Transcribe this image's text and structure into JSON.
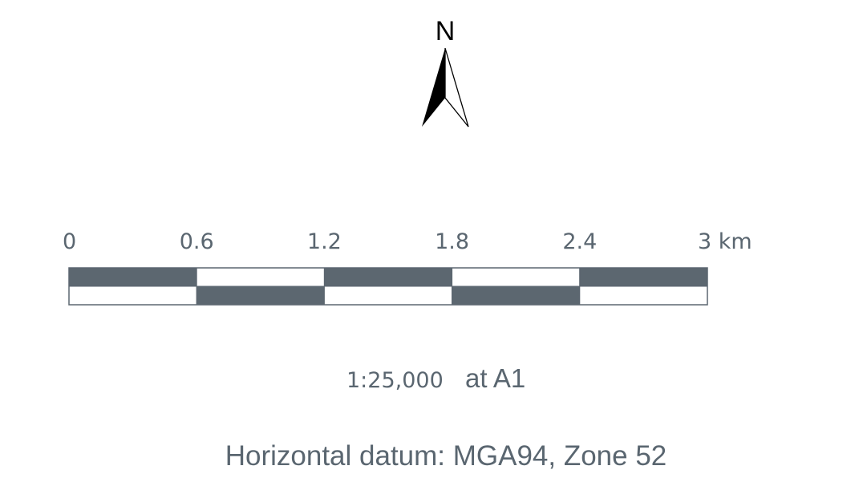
{
  "north_arrow": {
    "label": "N",
    "icon": "north-arrow-icon"
  },
  "scale_bar": {
    "unit": "km",
    "ticks": [
      "0",
      "0.6",
      "1.2",
      "1.8",
      "2.4",
      "3 km"
    ],
    "segment_values_km": [
      0,
      0.6,
      1.2,
      1.8,
      2.4,
      3
    ],
    "colors": {
      "dark": "#5c6770",
      "light": "#ffffff",
      "outline": "#5c6770"
    }
  },
  "scale_text": {
    "ratio": "1:25,000",
    "suffix": "at A1"
  },
  "datum": "Horizontal datum: MGA94, Zone 52"
}
